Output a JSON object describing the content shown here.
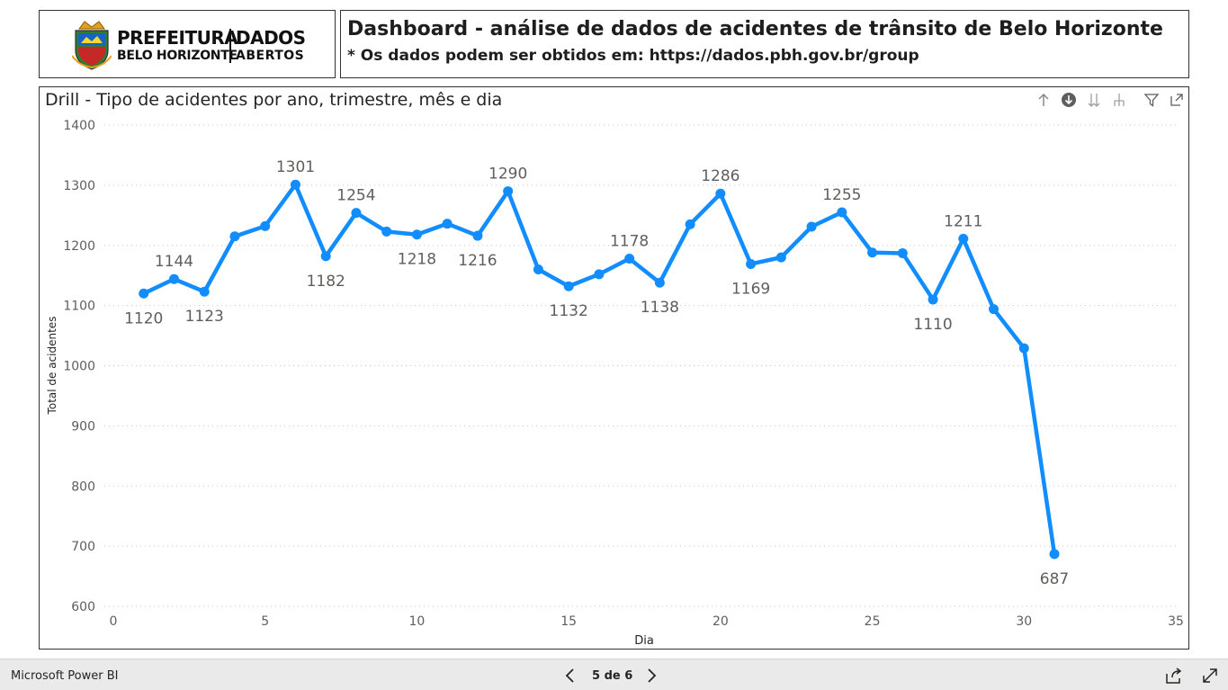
{
  "logo": {
    "line1": "PREFEITURA",
    "line2": "BELO HORIZONTE",
    "dados1": "DADOS",
    "dados2": "ABERTOS"
  },
  "header": {
    "title": "Dashboard - análise de dados de acidentes de trânsito de Belo Horizonte",
    "subtitle": "* Os dados podem ser obtidos em: https://dados.pbh.gov.br/group"
  },
  "visual": {
    "title": "Drill - Tipo de acidentes por ano, trimestre, mês e dia",
    "header_icons": [
      "drill-up-icon",
      "drill-down-toggle-icon",
      "next-level-icon",
      "expand-hierarchy-icon",
      "filter-icon",
      "focus-mode-icon"
    ]
  },
  "chart_data": {
    "type": "line",
    "xlabel": "Dia",
    "ylabel": "Total de acidentes",
    "xlim": [
      0,
      35
    ],
    "ylim": [
      600,
      1400
    ],
    "xticks": [
      0,
      5,
      10,
      15,
      20,
      25,
      30,
      35
    ],
    "yticks": [
      600,
      700,
      800,
      900,
      1000,
      1100,
      1200,
      1300,
      1400
    ],
    "grid": "horizontal dotted",
    "color": "#118dff",
    "x": [
      1,
      2,
      3,
      4,
      5,
      6,
      7,
      8,
      9,
      10,
      11,
      12,
      13,
      14,
      15,
      16,
      17,
      18,
      19,
      20,
      21,
      22,
      23,
      24,
      25,
      26,
      27,
      28,
      29,
      30,
      31
    ],
    "values": [
      1120,
      1144,
      1123,
      1215,
      1232,
      1301,
      1182,
      1254,
      1223,
      1218,
      1236,
      1216,
      1290,
      1160,
      1132,
      1152,
      1178,
      1138,
      1235,
      1286,
      1169,
      1180,
      1231,
      1255,
      1188,
      1187,
      1110,
      1211,
      1094,
      1029,
      687
    ],
    "labels": {
      "1": {
        "text": "1120",
        "pos": "below"
      },
      "2": {
        "text": "1144",
        "pos": "above"
      },
      "3": {
        "text": "1123",
        "pos": "below"
      },
      "6": {
        "text": "1301",
        "pos": "above"
      },
      "7": {
        "text": "1182",
        "pos": "below"
      },
      "8": {
        "text": "1254",
        "pos": "above"
      },
      "10": {
        "text": "1218",
        "pos": "below"
      },
      "12": {
        "text": "1216",
        "pos": "below"
      },
      "13": {
        "text": "1290",
        "pos": "above"
      },
      "15": {
        "text": "1132",
        "pos": "below"
      },
      "17": {
        "text": "1178",
        "pos": "above"
      },
      "18": {
        "text": "1138",
        "pos": "below"
      },
      "20": {
        "text": "1286",
        "pos": "above"
      },
      "21": {
        "text": "1169",
        "pos": "below"
      },
      "24": {
        "text": "1255",
        "pos": "above"
      },
      "27": {
        "text": "1110",
        "pos": "below"
      },
      "28": {
        "text": "1211",
        "pos": "above"
      },
      "31": {
        "text": "687",
        "pos": "below"
      }
    }
  },
  "footer": {
    "brand": "Microsoft Power BI",
    "page": "5 de 6"
  }
}
